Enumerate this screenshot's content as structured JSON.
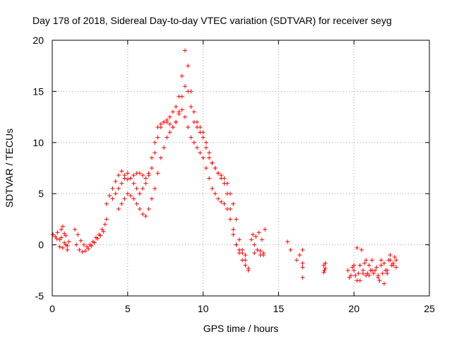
{
  "chart_data": {
    "type": "scatter",
    "title": "Day 178 of 2018, Sidereal Day-to-day VTEC variation (SDTVAR) for receiver seyg",
    "xlabel": "GPS time / hours",
    "ylabel": "SDTVAR / TECUs",
    "xlim": [
      0,
      25
    ],
    "ylim": [
      -5,
      20
    ],
    "xticks": [
      "0",
      "5",
      "10",
      "15",
      "20",
      "25"
    ],
    "yticks": [
      "-5",
      "0",
      "5",
      "10",
      "15",
      "20"
    ],
    "grid": true,
    "marker": "+",
    "color": "#ff0000",
    "series": [
      {
        "name": "SDTVAR",
        "x": [
          0.05,
          0.2,
          0.35,
          0.5,
          0.6,
          0.7,
          0.8,
          0.9,
          1.0,
          1.1,
          0.3,
          0.5,
          0.7,
          0.9,
          0.6,
          0.8,
          1.0,
          1.5,
          1.7,
          1.9,
          2.1,
          2.3,
          2.5,
          2.7,
          2.9,
          3.1,
          3.3,
          3.5,
          3.6,
          1.6,
          1.8,
          2.0,
          2.2,
          2.4,
          2.6,
          2.8,
          3.0,
          3.2,
          3.4,
          3.6,
          3.8,
          4.0,
          4.2,
          4.4,
          4.6,
          4.8,
          5.0,
          5.2,
          5.4,
          5.6,
          5.8,
          6.0,
          6.2,
          6.4,
          6.6,
          6.8,
          7.0,
          7.2,
          7.4,
          7.6,
          7.8,
          8.0,
          8.2,
          8.4,
          8.6,
          8.8,
          9.0,
          9.2,
          9.4,
          9.6,
          9.8,
          10.0,
          10.2,
          10.4,
          10.6,
          10.8,
          11.0,
          11.2,
          11.4,
          11.6,
          11.8,
          12.0,
          12.2,
          12.4,
          12.6,
          12.8,
          13.0,
          4.0,
          4.2,
          4.4,
          4.6,
          4.8,
          5.0,
          5.2,
          5.4,
          5.6,
          5.8,
          6.0,
          6.2,
          6.4,
          6.6,
          6.8,
          7.0,
          7.2,
          7.4,
          7.6,
          7.8,
          8.0,
          8.2,
          8.4,
          8.6,
          8.8,
          9.0,
          9.2,
          9.4,
          9.6,
          9.8,
          10.0,
          10.2,
          10.4,
          10.6,
          10.8,
          11.0,
          11.2,
          11.4,
          11.6,
          11.8,
          12.0,
          12.2,
          12.4,
          12.6,
          12.8,
          13.0,
          4.4,
          4.6,
          4.8,
          5.0,
          5.2,
          5.4,
          5.6,
          5.8,
          6.0,
          6.2,
          6.4,
          6.6,
          6.8,
          7.0,
          7.2,
          7.4,
          7.6,
          7.8,
          8.0,
          8.2,
          8.4,
          8.6,
          8.8,
          9.0,
          9.2,
          9.4,
          9.6,
          9.8,
          10.0,
          10.2,
          10.4,
          10.6,
          10.8,
          11.0,
          11.2,
          11.4,
          11.6,
          11.8,
          12.0,
          12.2,
          12.4,
          12.6,
          12.8,
          13.2,
          13.4,
          13.6,
          13.8,
          14.0,
          13.3,
          13.5,
          13.7,
          13.9,
          14.1,
          13.4,
          13.8,
          14.0,
          15.6,
          15.8,
          16.2,
          16.4,
          16.6,
          16.6,
          16.6,
          16.6,
          18.0,
          18.05,
          18.1,
          18.0,
          18.1,
          19.6,
          19.8,
          20.0,
          20.2,
          20.4,
          20.6,
          20.8,
          21.0,
          21.2,
          21.4,
          21.6,
          21.8,
          22.0,
          22.2,
          22.4,
          22.6,
          22.8,
          19.7,
          19.9,
          20.1,
          20.3,
          20.5,
          20.7,
          20.9,
          21.1,
          21.3,
          21.5,
          21.7,
          21.9,
          22.1,
          22.3,
          22.5,
          22.7,
          20.0,
          20.4,
          20.8,
          21.2,
          21.6,
          22.0,
          22.4,
          22.8,
          20.2,
          20.6,
          21.0,
          21.8,
          22.2,
          22.6
        ],
        "y": [
          1.0,
          0.8,
          1.2,
          0.5,
          1.5,
          -0.3,
          0.2,
          0.9,
          -0.5,
          0.3,
          0.6,
          -0.2,
          1.8,
          0.0,
          0.7,
          1.1,
          -0.1,
          1.5,
          1.0,
          0.4,
          0.0,
          -0.2,
          0.0,
          0.3,
          0.7,
          1.0,
          1.5,
          2.0,
          2.5,
          0.0,
          -0.5,
          -0.7,
          -0.6,
          -0.4,
          -0.1,
          0.2,
          0.6,
          0.9,
          1.3,
          4.0,
          4.8,
          5.5,
          6.2,
          6.8,
          7.2,
          6.8,
          6.4,
          6.5,
          6.8,
          7.0,
          7.0,
          6.8,
          6.5,
          7.0,
          8.5,
          10.0,
          11.5,
          11.8,
          12.0,
          12.2,
          12.5,
          13.0,
          13.5,
          14.5,
          16.5,
          19.0,
          17.5,
          15.0,
          13.0,
          12.0,
          11.5,
          11.0,
          10.0,
          9.0,
          8.0,
          7.5,
          7.0,
          6.5,
          6.0,
          5.0,
          3.5,
          1.5,
          0.0,
          -0.8,
          -1.5,
          -2.0,
          -2.5,
          4.5,
          5.0,
          5.5,
          6.0,
          6.5,
          7.0,
          6.5,
          6.0,
          5.5,
          5.0,
          5.5,
          6.0,
          6.8,
          7.5,
          9.0,
          10.5,
          11.5,
          12.0,
          12.0,
          11.8,
          11.5,
          12.0,
          13.0,
          14.5,
          15.5,
          15.0,
          13.5,
          12.0,
          11.5,
          11.0,
          10.5,
          9.5,
          8.5,
          8.0,
          7.5,
          7.0,
          6.8,
          6.5,
          6.0,
          5.0,
          4.0,
          2.5,
          0.5,
          -0.5,
          -1.5,
          -2.3,
          3.5,
          4.0,
          4.5,
          5.0,
          4.8,
          4.5,
          4.0,
          3.5,
          3.0,
          2.8,
          3.5,
          4.5,
          5.5,
          7.0,
          8.5,
          9.5,
          10.5,
          11.0,
          11.5,
          12.0,
          12.8,
          13.2,
          12.5,
          11.5,
          10.5,
          10.0,
          9.5,
          9.0,
          8.5,
          7.5,
          6.5,
          5.5,
          5.0,
          4.5,
          4.2,
          4.0,
          3.5,
          2.5,
          1.0,
          0.0,
          -0.5,
          -0.8,
          -1.0,
          0.5,
          0.0,
          -0.5,
          -1.0,
          -0.8,
          1.0,
          0.8,
          1.2,
          0.5,
          1.5,
          -0.8,
          -0.6,
          -1.0,
          0.3,
          -0.5,
          -1.5,
          -1.0,
          -0.5,
          -1.8,
          -2.2,
          -3.2,
          -2.0,
          -2.5,
          -2.3,
          -2.7,
          -1.8,
          -2.5,
          -3.0,
          -2.5,
          -3.5,
          -2.0,
          -2.5,
          -3.0,
          -2.0,
          -1.5,
          -2.5,
          -3.0,
          -2.0,
          -3.8,
          -2.5,
          -1.5,
          -2.0,
          -1.5,
          -3.2,
          -2.2,
          -3.0,
          -2.8,
          -0.5,
          -1.8,
          -2.8,
          -2.5,
          -2.8,
          -2.2,
          -3.5,
          -2.8,
          -2.5,
          -1.5,
          -2.0,
          -1.2,
          -2.0,
          -3.5,
          -1.5,
          -2.5,
          -3.2,
          -1.8,
          -1.0,
          -2.2,
          -0.3,
          -2.8,
          -3.0,
          -1.5,
          -2.8,
          -1.8
        ]
      }
    ]
  }
}
